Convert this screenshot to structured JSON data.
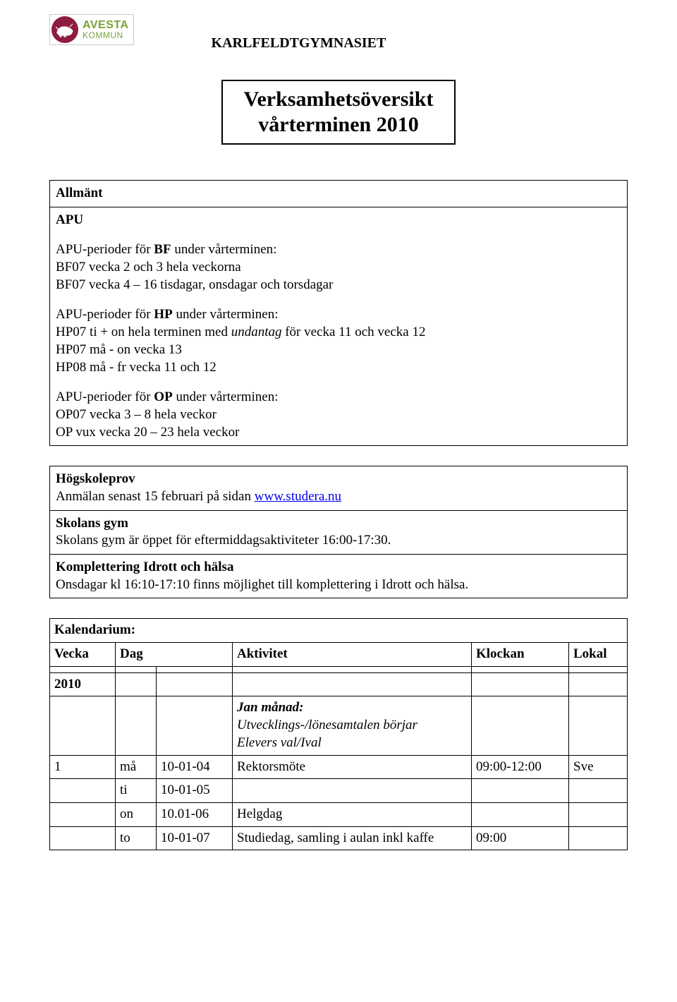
{
  "logo": {
    "brand": "AVESTA",
    "sub": "KOMMUN",
    "circle_bg": "#8e1d3f",
    "text_color": "#7aa13a"
  },
  "org_name": "KARLFELDTGYMNASIET",
  "title_line1": "Verksamhetsöversikt",
  "title_line2": "vårterminen 2010",
  "allmant": {
    "heading": "Allmänt",
    "apu_heading": "APU",
    "bf_label": "APU-perioder för BF under vårterminen:",
    "bf_line1": "BF07 vecka 2 och 3 hela veckorna",
    "bf_line2": "BF07 vecka 4 – 16 tisdagar, onsdagar och torsdagar",
    "hp_label": "APU-perioder för HP under vårterminen:",
    "hp_line1_a": "HP07 ti + on hela terminen med ",
    "hp_line1_b": "undantag",
    "hp_line1_c": " för vecka 11 och vecka 12",
    "hp_line2": "HP07 må - on vecka 13",
    "hp_line3": "HP08 må - fr vecka 11 och 12",
    "op_label": "APU-perioder för OP under vårterminen:",
    "op_line1": "OP07 vecka 3 – 8 hela veckor",
    "op_line2": "OP vux vecka 20 – 23 hela veckor"
  },
  "hogskoleprov": {
    "heading": "Högskoleprov",
    "text": "Anmälan senast 15 februari på sidan ",
    "link": "www.studera.nu"
  },
  "gym": {
    "heading": "Skolans gym",
    "text": "Skolans gym är öppet för eftermiddagsaktiviteter 16:00-17:30."
  },
  "idrott": {
    "heading": "Komplettering Idrott och hälsa",
    "text": "Onsdagar kl 16:10-17:10 finns möjlighet till komplettering i Idrott och hälsa."
  },
  "kalendarium": {
    "heading": "Kalendarium:",
    "headers": {
      "vecka": "Vecka",
      "dag": "Dag",
      "aktivitet": "Aktivitet",
      "klockan": "Klockan",
      "lokal": "Lokal"
    },
    "year": "2010",
    "jan_heading": "Jan månad:",
    "jan_line1": "Utvecklings-/lönesamtalen börjar",
    "jan_line2": "Elevers val/Ival",
    "rows": [
      {
        "vecka": "1",
        "dag": "må",
        "date": "10-01-04",
        "akt": "Rektorsmöte",
        "klock": "09:00-12:00",
        "lokal": "Sve"
      },
      {
        "vecka": "",
        "dag": "ti",
        "date": "10-01-05",
        "akt": "",
        "klock": "",
        "lokal": ""
      },
      {
        "vecka": "",
        "dag": "on",
        "date": "10.01-06",
        "akt": "Helgdag",
        "klock": "",
        "lokal": ""
      },
      {
        "vecka": "",
        "dag": "to",
        "date": "10-01-07",
        "akt": "Studiedag, samling i aulan inkl kaffe",
        "klock": "09:00",
        "lokal": ""
      }
    ]
  }
}
